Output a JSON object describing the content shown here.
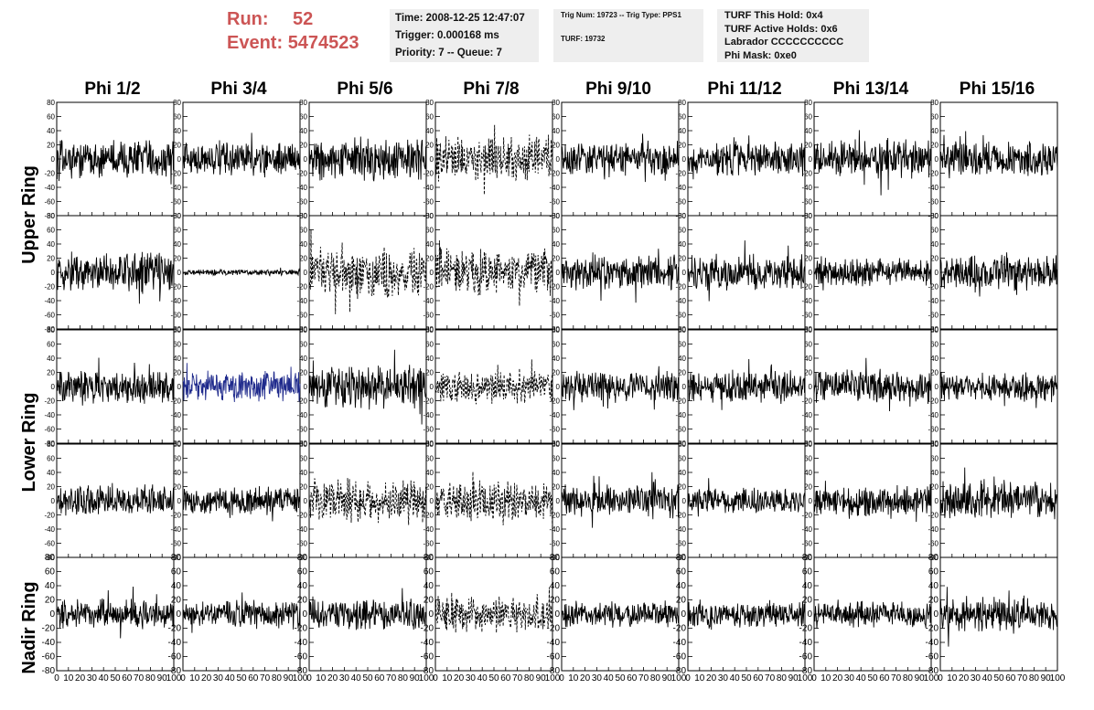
{
  "header": {
    "run_label": "Run:",
    "run_value": "52",
    "event_label": "Event:",
    "event_value": "5474523",
    "time": "Time: 2008-12-25 12:47:07",
    "trigger": "Trigger: 0.000168 ms",
    "priority": "Priority: 7 -- Queue: 7",
    "trig_num": "Trig Num: 19723 -- Trig Type: PPS1",
    "turf": "TURF: 19732",
    "turf_hold": "TURF This Hold: 0x4",
    "turf_active": "TURF Active Holds: 0x6",
    "labrador": "Labrador CCCCCCCCCC",
    "phi_mask": "Phi Mask: 0xe0"
  },
  "columns": [
    "Phi 1/2",
    "Phi 3/4",
    "Phi 5/6",
    "Phi 7/8",
    "Phi 9/10",
    "Phi 11/12",
    "Phi 13/14",
    "Phi 15/16"
  ],
  "rings": [
    "Upper Ring",
    "Lower Ring",
    "Nadir Ring"
  ],
  "colors": {
    "trace": "#000000",
    "highlight": "#1f2a8c",
    "run_text": "#cc5555",
    "info_bg": "#eeeeee"
  },
  "chart_data": {
    "type": "line",
    "title": "",
    "xlabel": "",
    "ylabel": "",
    "xlim": [
      0,
      100
    ],
    "ylim": [
      -80,
      80
    ],
    "xticks": [
      "0",
      "10",
      "20",
      "30",
      "40",
      "50",
      "60",
      "70",
      "80",
      "90",
      "100"
    ],
    "yticks": [
      "80",
      "60",
      "40",
      "20",
      "0",
      "-20",
      "-40",
      "-60",
      "-80"
    ],
    "panel_rows": 5,
    "panel_cols": 8,
    "panels": [
      {
        "row": 0,
        "col": 0,
        "amplitude": 20,
        "style": "solid",
        "color": "#000000"
      },
      {
        "row": 0,
        "col": 1,
        "amplitude": 18,
        "style": "solid",
        "color": "#000000"
      },
      {
        "row": 0,
        "col": 2,
        "amplitude": 22,
        "style": "solid",
        "color": "#000000"
      },
      {
        "row": 0,
        "col": 3,
        "amplitude": 25,
        "style": "dashed",
        "color": "#000000"
      },
      {
        "row": 0,
        "col": 4,
        "amplitude": 18,
        "style": "solid",
        "color": "#000000"
      },
      {
        "row": 0,
        "col": 5,
        "amplitude": 18,
        "style": "solid",
        "color": "#000000"
      },
      {
        "row": 0,
        "col": 6,
        "amplitude": 20,
        "style": "solid",
        "color": "#000000"
      },
      {
        "row": 0,
        "col": 7,
        "amplitude": 18,
        "style": "solid",
        "color": "#000000"
      },
      {
        "row": 1,
        "col": 0,
        "amplitude": 22,
        "style": "solid",
        "color": "#000000"
      },
      {
        "row": 1,
        "col": 1,
        "amplitude": 3,
        "style": "solid",
        "color": "#000000"
      },
      {
        "row": 1,
        "col": 2,
        "amplitude": 25,
        "style": "dashed",
        "color": "#000000"
      },
      {
        "row": 1,
        "col": 3,
        "amplitude": 25,
        "style": "dashed",
        "color": "#000000"
      },
      {
        "row": 1,
        "col": 4,
        "amplitude": 18,
        "style": "solid",
        "color": "#000000"
      },
      {
        "row": 1,
        "col": 5,
        "amplitude": 18,
        "style": "solid",
        "color": "#000000"
      },
      {
        "row": 1,
        "col": 6,
        "amplitude": 15,
        "style": "solid",
        "color": "#000000"
      },
      {
        "row": 1,
        "col": 7,
        "amplitude": 18,
        "style": "solid",
        "color": "#000000"
      },
      {
        "row": 2,
        "col": 0,
        "amplitude": 18,
        "style": "solid",
        "color": "#000000"
      },
      {
        "row": 2,
        "col": 1,
        "amplitude": 16,
        "style": "solid",
        "color": "#1f2a8c"
      },
      {
        "row": 2,
        "col": 2,
        "amplitude": 22,
        "style": "solid",
        "color": "#000000"
      },
      {
        "row": 2,
        "col": 3,
        "amplitude": 18,
        "style": "dashed",
        "color": "#000000"
      },
      {
        "row": 2,
        "col": 4,
        "amplitude": 16,
        "style": "solid",
        "color": "#000000"
      },
      {
        "row": 2,
        "col": 5,
        "amplitude": 16,
        "style": "solid",
        "color": "#000000"
      },
      {
        "row": 2,
        "col": 6,
        "amplitude": 18,
        "style": "solid",
        "color": "#000000"
      },
      {
        "row": 2,
        "col": 7,
        "amplitude": 14,
        "style": "solid",
        "color": "#000000"
      },
      {
        "row": 3,
        "col": 0,
        "amplitude": 16,
        "style": "solid",
        "color": "#000000"
      },
      {
        "row": 3,
        "col": 1,
        "amplitude": 14,
        "style": "solid",
        "color": "#000000"
      },
      {
        "row": 3,
        "col": 2,
        "amplitude": 22,
        "style": "dashed",
        "color": "#000000"
      },
      {
        "row": 3,
        "col": 3,
        "amplitude": 20,
        "style": "dashed",
        "color": "#000000"
      },
      {
        "row": 3,
        "col": 4,
        "amplitude": 18,
        "style": "solid",
        "color": "#000000"
      },
      {
        "row": 3,
        "col": 5,
        "amplitude": 14,
        "style": "solid",
        "color": "#000000"
      },
      {
        "row": 3,
        "col": 6,
        "amplitude": 16,
        "style": "solid",
        "color": "#000000"
      },
      {
        "row": 3,
        "col": 7,
        "amplitude": 20,
        "style": "solid",
        "color": "#000000"
      },
      {
        "row": 4,
        "col": 0,
        "amplitude": 16,
        "style": "solid",
        "color": "#000000"
      },
      {
        "row": 4,
        "col": 1,
        "amplitude": 14,
        "style": "solid",
        "color": "#000000"
      },
      {
        "row": 4,
        "col": 2,
        "amplitude": 16,
        "style": "solid",
        "color": "#000000"
      },
      {
        "row": 4,
        "col": 3,
        "amplitude": 20,
        "style": "dashed",
        "color": "#000000"
      },
      {
        "row": 4,
        "col": 4,
        "amplitude": 14,
        "style": "solid",
        "color": "#000000"
      },
      {
        "row": 4,
        "col": 5,
        "amplitude": 14,
        "style": "solid",
        "color": "#000000"
      },
      {
        "row": 4,
        "col": 6,
        "amplitude": 14,
        "style": "solid",
        "color": "#000000"
      },
      {
        "row": 4,
        "col": 7,
        "amplitude": 18,
        "style": "solid",
        "color": "#000000"
      }
    ]
  }
}
